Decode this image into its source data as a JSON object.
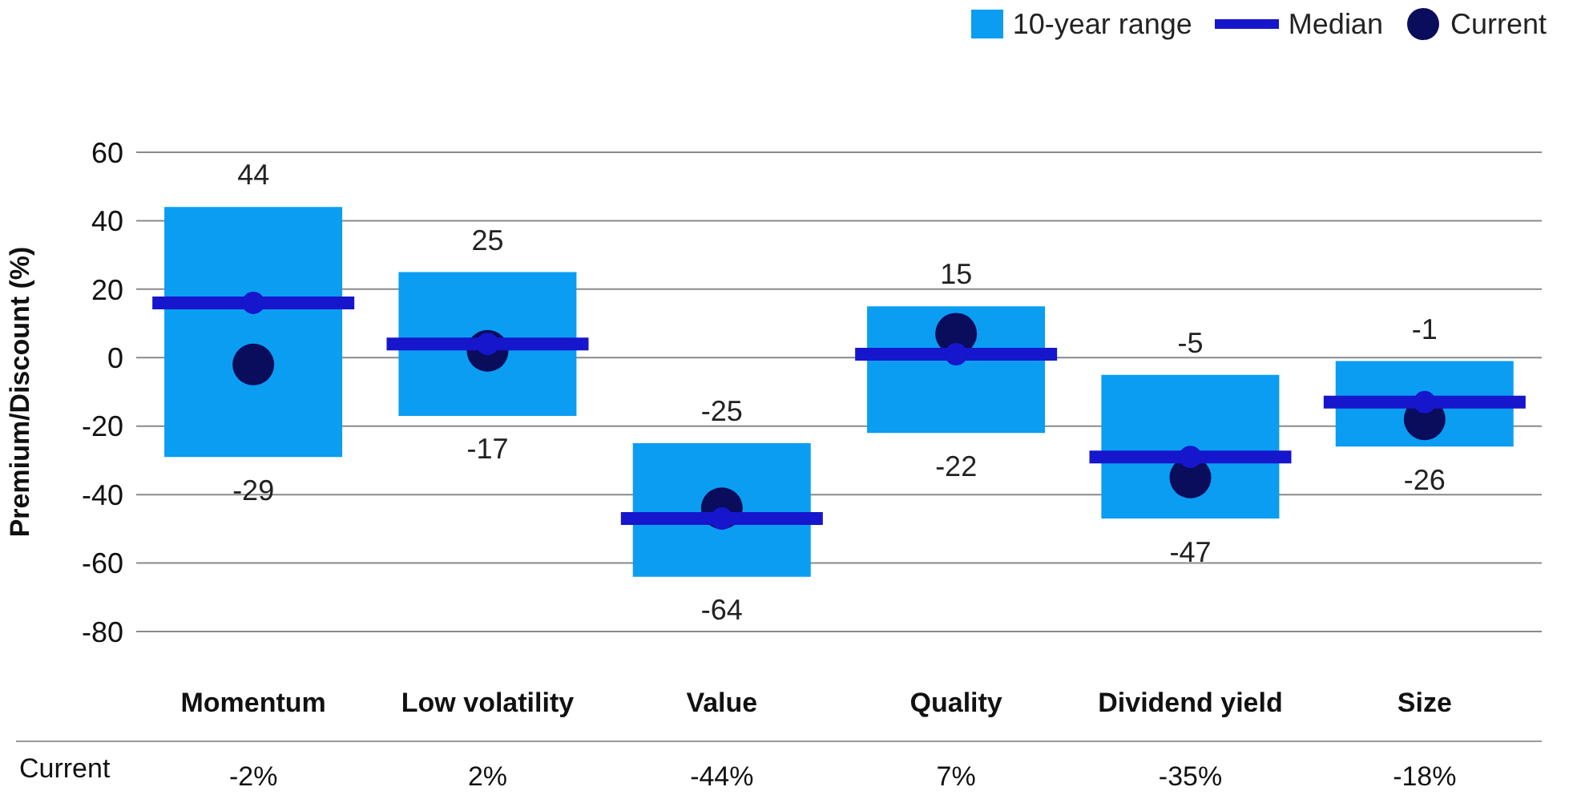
{
  "chart_data": {
    "type": "bar",
    "ylabel": "Premium/Discount (%)",
    "categories": [
      "Momentum",
      "Low volatility",
      "Value",
      "Quality",
      "Dividend yield",
      "Size"
    ],
    "series": [
      {
        "name": "10-year range",
        "type": "bar",
        "color": "#0b9df2",
        "base": [
          -29,
          -17,
          -64,
          -22,
          -47,
          -26
        ],
        "values": [
          73,
          42,
          39,
          37,
          42,
          25
        ]
      },
      {
        "name": "Median",
        "type": "scatter",
        "color": "#1616cc",
        "x": [
          "Momentum",
          "Low volatility",
          "Value",
          "Quality",
          "Dividend yield",
          "Size"
        ],
        "values": [
          16,
          4,
          -47,
          1,
          -29,
          -13
        ]
      },
      {
        "name": "Current",
        "type": "scatter",
        "marker": "circle",
        "color": "#0a0c5c",
        "x": [
          "Momentum",
          "Low volatility",
          "Value",
          "Quality",
          "Dividend yield",
          "Size"
        ],
        "values": [
          -2,
          2,
          -44,
          7,
          -35,
          -18
        ],
        "value_labels": [
          "-2%",
          "2%",
          "-44%",
          "7%",
          "-35%",
          "-18%"
        ]
      }
    ],
    "annotations": [
      {
        "text": "44",
        "x": "Momentum",
        "y": 44
      },
      {
        "text": "25",
        "x": "Low volatility",
        "y": 25
      },
      {
        "text": "-25",
        "x": "Value",
        "y": -25
      },
      {
        "text": "15",
        "x": "Quality",
        "y": 15
      },
      {
        "text": "-5",
        "x": "Dividend yield",
        "y": -5
      },
      {
        "text": "-1",
        "x": "Size",
        "y": -1
      },
      {
        "text": "-29",
        "x": "Momentum",
        "y": -29
      },
      {
        "text": "-17",
        "x": "Low volatility",
        "y": -17
      },
      {
        "text": "-64",
        "x": "Value",
        "y": -64
      },
      {
        "text": "-22",
        "x": "Quality",
        "y": -22
      },
      {
        "text": "-47",
        "x": "Dividend yield",
        "y": -47
      },
      {
        "text": "-26",
        "x": "Size",
        "y": -26
      }
    ],
    "ylim": [
      -80,
      60
    ],
    "yticks": [
      -80,
      -60,
      -40,
      -20,
      0,
      20,
      40,
      60
    ],
    "grid": "y",
    "legend": "top right"
  }
}
